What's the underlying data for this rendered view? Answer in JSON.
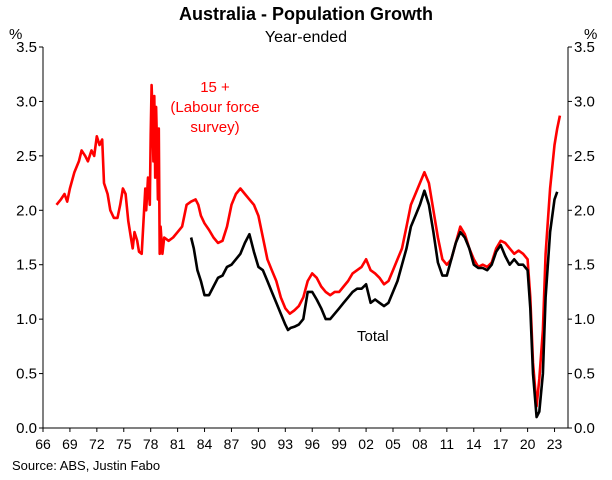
{
  "chart_data": {
    "type": "line",
    "title": "Australia - Population Growth",
    "subtitle": "Year-ended",
    "ylabel_left": "%",
    "ylabel_right": "%",
    "ylim": [
      0.0,
      3.5
    ],
    "xlim": [
      1966,
      2024.5
    ],
    "y_ticks": [
      "0.0",
      "0.5",
      "1.0",
      "1.5",
      "2.0",
      "2.5",
      "3.0",
      "3.5"
    ],
    "x_ticks": [
      "66",
      "69",
      "72",
      "75",
      "78",
      "81",
      "84",
      "87",
      "90",
      "93",
      "96",
      "99",
      "02",
      "05",
      "08",
      "11",
      "14",
      "17",
      "20",
      "23"
    ],
    "source": "Source: ABS, Justin Fabo",
    "annotations": {
      "labour_force": [
        "15 +",
        "(Labour force",
        "survey)"
      ],
      "total": "Total"
    },
    "series": [
      {
        "name": "15 + (Labour force survey)",
        "color": "#ff0000",
        "points": [
          [
            1967.5,
            2.05
          ],
          [
            1968.0,
            2.1
          ],
          [
            1968.4,
            2.15
          ],
          [
            1968.7,
            2.08
          ],
          [
            1969.0,
            2.2
          ],
          [
            1969.5,
            2.35
          ],
          [
            1970.0,
            2.45
          ],
          [
            1970.3,
            2.55
          ],
          [
            1970.7,
            2.5
          ],
          [
            1971.0,
            2.45
          ],
          [
            1971.4,
            2.55
          ],
          [
            1971.7,
            2.5
          ],
          [
            1972.0,
            2.68
          ],
          [
            1972.3,
            2.6
          ],
          [
            1972.6,
            2.65
          ],
          [
            1972.8,
            2.25
          ],
          [
            1973.2,
            2.15
          ],
          [
            1973.5,
            2.0
          ],
          [
            1973.9,
            1.93
          ],
          [
            1974.3,
            1.93
          ],
          [
            1974.6,
            2.05
          ],
          [
            1974.9,
            2.2
          ],
          [
            1975.2,
            2.15
          ],
          [
            1975.5,
            1.9
          ],
          [
            1975.8,
            1.75
          ],
          [
            1976.0,
            1.65
          ],
          [
            1976.2,
            1.8
          ],
          [
            1976.5,
            1.72
          ],
          [
            1976.7,
            1.62
          ],
          [
            1977.0,
            1.6
          ],
          [
            1977.2,
            1.9
          ],
          [
            1977.4,
            2.2
          ],
          [
            1977.5,
            2.0
          ],
          [
            1977.7,
            2.3
          ],
          [
            1977.9,
            2.05
          ],
          [
            1978.0,
            2.7
          ],
          [
            1978.1,
            3.15
          ],
          [
            1978.2,
            2.9
          ],
          [
            1978.3,
            2.45
          ],
          [
            1978.4,
            3.05
          ],
          [
            1978.5,
            2.3
          ],
          [
            1978.6,
            2.95
          ],
          [
            1978.7,
            2.6
          ],
          [
            1978.8,
            2.1
          ],
          [
            1978.9,
            2.75
          ],
          [
            1979.0,
            1.6
          ],
          [
            1979.1,
            1.85
          ],
          [
            1979.3,
            1.6
          ],
          [
            1979.5,
            1.75
          ],
          [
            1980.0,
            1.72
          ],
          [
            1980.5,
            1.75
          ],
          [
            1981.0,
            1.8
          ],
          [
            1981.5,
            1.85
          ],
          [
            1982.0,
            2.05
          ],
          [
            1982.5,
            2.08
          ],
          [
            1983.0,
            2.1
          ],
          [
            1983.3,
            2.05
          ],
          [
            1983.6,
            1.95
          ],
          [
            1984.0,
            1.88
          ],
          [
            1984.5,
            1.82
          ],
          [
            1985.0,
            1.75
          ],
          [
            1985.5,
            1.7
          ],
          [
            1986.0,
            1.72
          ],
          [
            1986.5,
            1.85
          ],
          [
            1987.0,
            2.05
          ],
          [
            1987.5,
            2.15
          ],
          [
            1988.0,
            2.2
          ],
          [
            1988.5,
            2.15
          ],
          [
            1989.0,
            2.1
          ],
          [
            1989.5,
            2.05
          ],
          [
            1990.0,
            1.95
          ],
          [
            1990.5,
            1.75
          ],
          [
            1991.0,
            1.55
          ],
          [
            1991.5,
            1.45
          ],
          [
            1992.0,
            1.35
          ],
          [
            1992.5,
            1.2
          ],
          [
            1993.0,
            1.1
          ],
          [
            1993.5,
            1.05
          ],
          [
            1994.0,
            1.08
          ],
          [
            1994.5,
            1.12
          ],
          [
            1995.0,
            1.2
          ],
          [
            1995.5,
            1.35
          ],
          [
            1996.0,
            1.42
          ],
          [
            1996.5,
            1.38
          ],
          [
            1997.0,
            1.3
          ],
          [
            1997.5,
            1.25
          ],
          [
            1998.0,
            1.22
          ],
          [
            1998.5,
            1.25
          ],
          [
            1999.0,
            1.25
          ],
          [
            1999.5,
            1.3
          ],
          [
            2000.0,
            1.35
          ],
          [
            2000.5,
            1.42
          ],
          [
            2001.0,
            1.45
          ],
          [
            2001.5,
            1.48
          ],
          [
            2002.0,
            1.55
          ],
          [
            2002.5,
            1.45
          ],
          [
            2003.0,
            1.42
          ],
          [
            2003.5,
            1.38
          ],
          [
            2004.0,
            1.32
          ],
          [
            2004.5,
            1.35
          ],
          [
            2005.0,
            1.45
          ],
          [
            2005.5,
            1.55
          ],
          [
            2006.0,
            1.65
          ],
          [
            2006.5,
            1.85
          ],
          [
            2007.0,
            2.05
          ],
          [
            2007.5,
            2.15
          ],
          [
            2008.0,
            2.25
          ],
          [
            2008.5,
            2.35
          ],
          [
            2009.0,
            2.25
          ],
          [
            2009.5,
            2.0
          ],
          [
            2010.0,
            1.75
          ],
          [
            2010.5,
            1.55
          ],
          [
            2011.0,
            1.5
          ],
          [
            2011.5,
            1.55
          ],
          [
            2012.0,
            1.7
          ],
          [
            2012.5,
            1.85
          ],
          [
            2013.0,
            1.78
          ],
          [
            2013.5,
            1.65
          ],
          [
            2014.0,
            1.55
          ],
          [
            2014.5,
            1.48
          ],
          [
            2015.0,
            1.5
          ],
          [
            2015.5,
            1.48
          ],
          [
            2016.0,
            1.52
          ],
          [
            2016.5,
            1.65
          ],
          [
            2017.0,
            1.72
          ],
          [
            2017.5,
            1.7
          ],
          [
            2018.0,
            1.65
          ],
          [
            2018.5,
            1.6
          ],
          [
            2019.0,
            1.63
          ],
          [
            2019.5,
            1.6
          ],
          [
            2020.0,
            1.55
          ],
          [
            2020.3,
            1.2
          ],
          [
            2020.6,
            0.6
          ],
          [
            2021.0,
            0.2
          ],
          [
            2021.3,
            0.45
          ],
          [
            2021.7,
            0.9
          ],
          [
            2022.0,
            1.6
          ],
          [
            2022.5,
            2.2
          ],
          [
            2023.0,
            2.6
          ],
          [
            2023.3,
            2.75
          ],
          [
            2023.6,
            2.87
          ]
        ]
      },
      {
        "name": "Total",
        "color": "#000000",
        "points": [
          [
            1982.5,
            1.75
          ],
          [
            1982.8,
            1.65
          ],
          [
            1983.2,
            1.45
          ],
          [
            1983.6,
            1.35
          ],
          [
            1984.0,
            1.22
          ],
          [
            1984.5,
            1.22
          ],
          [
            1985.0,
            1.3
          ],
          [
            1985.5,
            1.38
          ],
          [
            1986.0,
            1.4
          ],
          [
            1986.5,
            1.48
          ],
          [
            1987.0,
            1.5
          ],
          [
            1987.5,
            1.55
          ],
          [
            1988.0,
            1.6
          ],
          [
            1988.5,
            1.7
          ],
          [
            1989.0,
            1.78
          ],
          [
            1989.5,
            1.62
          ],
          [
            1990.0,
            1.48
          ],
          [
            1990.5,
            1.45
          ],
          [
            1991.0,
            1.35
          ],
          [
            1991.5,
            1.25
          ],
          [
            1992.0,
            1.15
          ],
          [
            1992.5,
            1.05
          ],
          [
            1993.0,
            0.95
          ],
          [
            1993.3,
            0.9
          ],
          [
            1993.6,
            0.92
          ],
          [
            1994.0,
            0.93
          ],
          [
            1994.5,
            0.95
          ],
          [
            1995.0,
            1.0
          ],
          [
            1995.5,
            1.25
          ],
          [
            1996.0,
            1.25
          ],
          [
            1996.5,
            1.18
          ],
          [
            1997.0,
            1.1
          ],
          [
            1997.5,
            1.0
          ],
          [
            1998.0,
            1.0
          ],
          [
            1998.5,
            1.05
          ],
          [
            1999.0,
            1.1
          ],
          [
            1999.5,
            1.15
          ],
          [
            2000.0,
            1.2
          ],
          [
            2000.5,
            1.25
          ],
          [
            2001.0,
            1.28
          ],
          [
            2001.5,
            1.28
          ],
          [
            2002.0,
            1.32
          ],
          [
            2002.5,
            1.15
          ],
          [
            2003.0,
            1.18
          ],
          [
            2003.5,
            1.15
          ],
          [
            2004.0,
            1.12
          ],
          [
            2004.5,
            1.15
          ],
          [
            2005.0,
            1.25
          ],
          [
            2005.5,
            1.35
          ],
          [
            2006.0,
            1.5
          ],
          [
            2006.5,
            1.65
          ],
          [
            2007.0,
            1.85
          ],
          [
            2007.5,
            1.95
          ],
          [
            2008.0,
            2.05
          ],
          [
            2008.5,
            2.18
          ],
          [
            2009.0,
            2.05
          ],
          [
            2009.5,
            1.8
          ],
          [
            2010.0,
            1.52
          ],
          [
            2010.5,
            1.4
          ],
          [
            2011.0,
            1.4
          ],
          [
            2011.5,
            1.55
          ],
          [
            2012.0,
            1.7
          ],
          [
            2012.5,
            1.8
          ],
          [
            2013.0,
            1.75
          ],
          [
            2013.5,
            1.65
          ],
          [
            2014.0,
            1.5
          ],
          [
            2014.5,
            1.47
          ],
          [
            2015.0,
            1.47
          ],
          [
            2015.5,
            1.45
          ],
          [
            2016.0,
            1.5
          ],
          [
            2016.5,
            1.62
          ],
          [
            2017.0,
            1.68
          ],
          [
            2017.5,
            1.58
          ],
          [
            2018.0,
            1.5
          ],
          [
            2018.5,
            1.55
          ],
          [
            2019.0,
            1.5
          ],
          [
            2019.5,
            1.5
          ],
          [
            2020.0,
            1.45
          ],
          [
            2020.3,
            1.1
          ],
          [
            2020.6,
            0.5
          ],
          [
            2021.0,
            0.1
          ],
          [
            2021.3,
            0.15
          ],
          [
            2021.7,
            0.5
          ],
          [
            2022.0,
            1.2
          ],
          [
            2022.5,
            1.8
          ],
          [
            2023.0,
            2.1
          ],
          [
            2023.3,
            2.17
          ]
        ]
      }
    ]
  }
}
